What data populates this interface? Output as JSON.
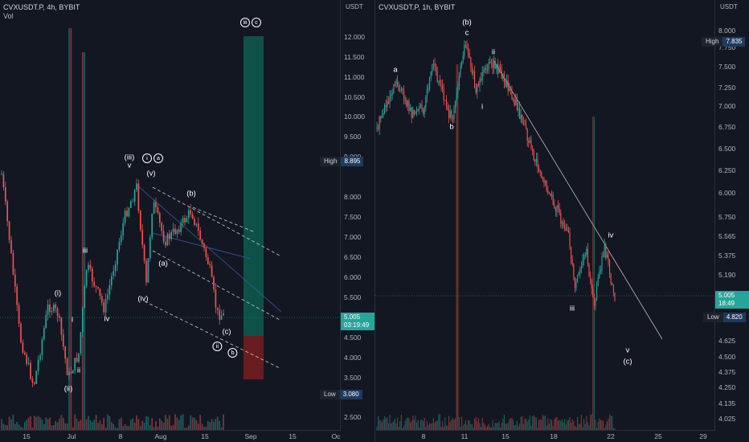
{
  "left": {
    "symbol": "CVXUSDT.P, 4h, BYBIT",
    "vol_label": "Vol",
    "currency": "USDT",
    "y_ticks": [
      "12.000",
      "11.500",
      "11.000",
      "10.500",
      "10.000",
      "9.500",
      "9.000",
      "8.000",
      "7.500",
      "7.000",
      "6.500",
      "6.000",
      "5.500",
      "4.500",
      "4.000",
      "3.500",
      "2.500"
    ],
    "x_ticks": [
      "15",
      "Jul",
      "8",
      "Aug",
      "15",
      "Sep",
      "15",
      "Oc"
    ],
    "high_label": "High",
    "high_value": "8.895",
    "low_label": "Low",
    "low_value": "3.080",
    "last_price": "5.005",
    "countdown": "03:19:49",
    "waves": {
      "top": "iii",
      "top_c": "c",
      "iii_a": "(iii)",
      "i_circ": "i",
      "a_circ": "a",
      "v_small": "v",
      "v_paren": "(v)",
      "b_paren": "(b)",
      "a_paren": "(a)",
      "iv_paren": "(iv)",
      "c_paren": "(c)",
      "ii_circ": "ii",
      "b_circ": "b",
      "i_paren": "(i)",
      "i_small": "i",
      "iii_small": "iii",
      "iv_small": "iv",
      "ii_small": "ii",
      "ii_paren": "(ii)"
    }
  },
  "right": {
    "symbol": "CVXUSDT.P, 1h, BYBIT",
    "currency": "USDT",
    "y_ticks": [
      "8.000",
      "7.750",
      "7.500",
      "7.250",
      "7.000",
      "6.750",
      "6.500",
      "6.250",
      "6.000",
      "5.750",
      "5.565",
      "5.375",
      "5.190",
      "4.625",
      "4.500",
      "4.375",
      "4.250",
      "4.135",
      "4.025"
    ],
    "x_ticks": [
      "8",
      "11",
      "15",
      "18",
      "22",
      "25",
      "29"
    ],
    "high_label": "High",
    "high_value": "7.835",
    "low_label": "Low",
    "low_value": "4.820",
    "last_price": "5.005",
    "countdown": "18:49",
    "waves": {
      "b_paren": "(b)",
      "c_small": "c",
      "a_small": "a",
      "b_small": "b",
      "ii_small": "ii",
      "i_small": "i",
      "iii_small": "iii",
      "iv_small": "iv",
      "v_small": "v",
      "c_paren": "(c)"
    }
  },
  "colors": {
    "up": "#26a69a",
    "down": "#ef5350",
    "target_green": "#0e5c4f",
    "target_red": "#7a1f1f",
    "bg": "#131722"
  }
}
